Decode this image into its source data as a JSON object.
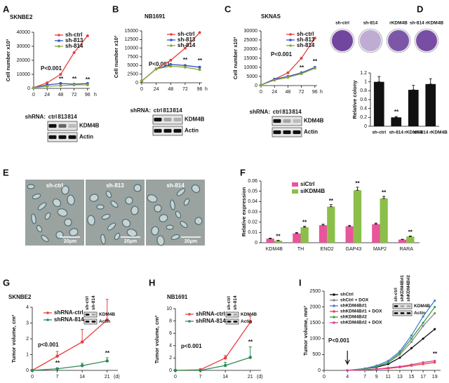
{
  "chart_data": [
    {
      "type": "line",
      "label": "A",
      "title": "SKNBE2",
      "ylabel": "Cell number x10³",
      "xlabel": "h",
      "x": [
        0,
        24,
        48,
        72,
        96
      ],
      "xlim": [
        0,
        100
      ],
      "xticks": [
        0,
        24,
        48,
        72,
        96
      ],
      "ylim": [
        0,
        40000
      ],
      "yticks": [
        0,
        10000,
        20000,
        30000,
        40000
      ],
      "series": [
        {
          "name": "sh-ctrl",
          "color": "#e8413c",
          "values": [
            500,
            4000,
            10000,
            25500,
            37500
          ]
        },
        {
          "name": "sh-813",
          "color": "#3050c8",
          "values": [
            500,
            2500,
            3500,
            3000,
            3500
          ]
        },
        {
          "name": "sh-814",
          "color": "#8aa53a",
          "values": [
            500,
            1500,
            2000,
            2500,
            2500
          ]
        }
      ],
      "annotations": [
        "P<0.001",
        "**",
        "**",
        "**"
      ]
    },
    {
      "type": "line",
      "label": "B",
      "title": "NB1691",
      "ylabel": "Cell number x10³",
      "xlabel": "h",
      "x": [
        0,
        24,
        48,
        72,
        96
      ],
      "xlim": [
        0,
        100
      ],
      "xticks": [
        0,
        24,
        48,
        72,
        96
      ],
      "ylim": [
        0,
        15000
      ],
      "yticks": [
        0,
        2500,
        5000,
        7500,
        10000,
        12500,
        15000
      ],
      "series": [
        {
          "name": "sh-ctrl",
          "color": "#e8413c",
          "values": [
            500,
            4000,
            6500,
            10000,
            14500
          ]
        },
        {
          "name": "sh-813",
          "color": "#3050c8",
          "values": [
            500,
            4000,
            5300,
            5000,
            4500
          ]
        },
        {
          "name": "sh-814",
          "color": "#8aa53a",
          "values": [
            500,
            4000,
            4800,
            4500,
            3800
          ]
        }
      ],
      "annotations": [
        "P<0.001",
        "**",
        "**"
      ]
    },
    {
      "type": "line",
      "label": "C",
      "title": "SKNAS",
      "ylabel": "Cell number x10³",
      "xlabel": "h",
      "x": [
        0,
        24,
        48,
        72,
        96
      ],
      "xlim": [
        0,
        100
      ],
      "xticks": [
        0,
        24,
        48,
        72,
        96
      ],
      "ylim": [
        0,
        30000
      ],
      "yticks": [
        0,
        5000,
        10000,
        15000,
        20000,
        25000,
        30000
      ],
      "series": [
        {
          "name": "sh-ctrl",
          "color": "#e8413c",
          "values": [
            300,
            3500,
            7000,
            15000,
            26000
          ]
        },
        {
          "name": "sh-813",
          "color": "#3050c8",
          "values": [
            300,
            3500,
            5000,
            7000,
            10000
          ]
        },
        {
          "name": "sh-814",
          "color": "#8aa53a",
          "values": [
            300,
            3000,
            4500,
            6500,
            9500
          ]
        }
      ],
      "annotations": [
        "P<0.001",
        "**",
        "**"
      ]
    },
    {
      "type": "bar",
      "label": "D",
      "image_labels": [
        "sh-ctrl",
        "sh-814",
        "rKDM4B",
        "sh-814 rKDM4B"
      ],
      "ylabel": "Relative colony",
      "categories": [
        "sh-ctrl",
        "sh-814",
        "rKDM4B",
        "sh-814 rKDM4B"
      ],
      "values": [
        1,
        0.2,
        0.82,
        0.95
      ],
      "errors": [
        0.12,
        0.02,
        0.1,
        0.12
      ],
      "color": "#111111",
      "ylim": [
        0,
        1.2
      ],
      "yticks": [
        0,
        0.2,
        0.4,
        0.6,
        0.8,
        1,
        1.2
      ],
      "annotations": [
        "**"
      ]
    },
    {
      "type": "bar",
      "label": "F",
      "ylabel": "Relative expression",
      "categories": [
        "KDM4B",
        "TH",
        "ENO2",
        "GAP43",
        "MAP2",
        "RARA"
      ],
      "series": [
        {
          "name": "siCtrl",
          "color": "#e8559a",
          "values": [
            0.004,
            0.009,
            0.017,
            0.016,
            0.018,
            0.003
          ],
          "errors": [
            0.0005,
            0.0008,
            0.001,
            0.0008,
            0.001,
            0.0004
          ]
        },
        {
          "name": "siKDM4B",
          "color": "#8cbf4a",
          "values": [
            0.002,
            0.015,
            0.035,
            0.051,
            0.043,
            0.006
          ],
          "errors": [
            0.0003,
            0.001,
            0.002,
            0.003,
            0.002,
            0.0005
          ]
        }
      ],
      "ylim": [
        0,
        0.06
      ],
      "yticks": [
        0,
        0.01,
        0.02,
        0.03,
        0.04,
        0.05,
        0.06
      ],
      "annotations": [
        "**",
        "**",
        "**",
        "**",
        "**",
        "**"
      ]
    },
    {
      "type": "line",
      "label": "G",
      "title": "SKNBE2",
      "ylabel": "Tumor volume, cm³",
      "xlabel": "(d)",
      "x": [
        0,
        7,
        14,
        21
      ],
      "xlim": [
        0,
        24
      ],
      "xticks": [
        0,
        7,
        14,
        21
      ],
      "ylim": [
        0,
        4
      ],
      "yticks": [
        0,
        1,
        2,
        3,
        4
      ],
      "series": [
        {
          "name": "shRNA-ctrl",
          "color": "#e8413c",
          "values": [
            0,
            0.9,
            1.8,
            3.2
          ],
          "errors": [
            0,
            0.3,
            0.8,
            1.3
          ]
        },
        {
          "name": "shRNA-814",
          "color": "#2e8b57",
          "values": [
            0,
            0.1,
            0.3,
            0.6
          ],
          "errors": [
            0,
            0.05,
            0.15,
            0.2
          ]
        }
      ],
      "annotations": [
        "p<0.001",
        "**",
        "**"
      ]
    },
    {
      "type": "line",
      "label": "H",
      "title": "NB1691",
      "ylabel": "Tumor volume, cm³",
      "xlabel": "(d)",
      "x": [
        0,
        7,
        14,
        21
      ],
      "xlim": [
        0,
        24
      ],
      "xticks": [
        0,
        7,
        14,
        21
      ],
      "ylim": [
        0,
        10
      ],
      "yticks": [
        0,
        2,
        4,
        6,
        8,
        10
      ],
      "series": [
        {
          "name": "shRNA-ctrl",
          "color": "#e8413c",
          "values": [
            0,
            0.1,
            2,
            7.8
          ],
          "errors": [
            0,
            0.1,
            0.4,
            1
          ]
        },
        {
          "name": "shRNA-814",
          "color": "#2e8b57",
          "values": [
            0,
            0,
            0.8,
            2.1
          ],
          "errors": [
            0,
            0,
            0.5,
            1.7
          ]
        }
      ],
      "annotations": [
        "p<0.001",
        "**"
      ]
    },
    {
      "type": "line",
      "label": "I",
      "ylabel": "Tumor volume, mm³",
      "x": [
        4,
        7,
        9,
        11,
        13,
        15,
        17,
        19
      ],
      "xlim": [
        0,
        20
      ],
      "xticks": [
        0,
        4,
        7,
        9,
        11,
        13,
        15,
        17,
        19
      ],
      "ylim": [
        0,
        2500
      ],
      "yticks": [
        0,
        500,
        1000,
        1500,
        2000,
        2500
      ],
      "series": [
        {
          "name": "shCtrl",
          "color": "#111111",
          "values": [
            0,
            50,
            100,
            200,
            400,
            700,
            1000,
            1300
          ]
        },
        {
          "name": "shCtrl + DOX",
          "color": "#888888",
          "values": [
            0,
            50,
            120,
            250,
            500,
            900,
            1400,
            1800
          ]
        },
        {
          "name": "shKDM4B#1",
          "color": "#4a7fd0",
          "values": [
            0,
            60,
            150,
            300,
            600,
            1100,
            1700,
            2200
          ]
        },
        {
          "name": "shKDM4B#1 + DOX",
          "color": "#e8413c",
          "values": [
            0,
            20,
            40,
            60,
            100,
            150,
            200,
            250
          ]
        },
        {
          "name": "shKDM4B#2",
          "color": "#3aa04a",
          "values": [
            0,
            50,
            120,
            250,
            550,
            1000,
            1500,
            2000
          ]
        },
        {
          "name": "shKDM4B#2 + DOX",
          "color": "#e040a0",
          "values": [
            0,
            20,
            40,
            80,
            120,
            180,
            250,
            300
          ]
        }
      ],
      "annotations": [
        "P<0.001",
        "**"
      ]
    }
  ],
  "micrographs": {
    "label": "E",
    "panels": [
      "sh-ctrl",
      "sh-813",
      "sh-814"
    ],
    "scale_bar": "20μm"
  },
  "blots": [
    {
      "prefix": "shRNA:",
      "lanes": [
        "ctrl",
        "813",
        "814"
      ],
      "bands": [
        "KDM4B",
        "Actin"
      ]
    },
    {
      "prefix": "shRNA:",
      "lanes": [
        "ctrl",
        "813",
        "814"
      ],
      "bands": [
        "KDM4B",
        "Actin"
      ]
    },
    {
      "prefix": "shRNA:",
      "lanes": [
        "ctrl",
        "813",
        "814"
      ],
      "bands": [
        "KDM4B",
        "Actin"
      ]
    },
    {
      "lanes": [
        "sh-ctrl",
        "sh-814"
      ],
      "bands": [
        "KDM4B",
        "Actin"
      ]
    },
    {
      "lanes": [
        "sh-ctrl",
        "sh-814"
      ],
      "bands": [
        "KDM4B",
        "Actin"
      ]
    },
    {
      "lanes": [
        "sh-ctrl",
        "shKDM4B#1",
        "shKDM4B#2"
      ],
      "bands": [
        "KDM4B",
        "Actin"
      ]
    }
  ]
}
